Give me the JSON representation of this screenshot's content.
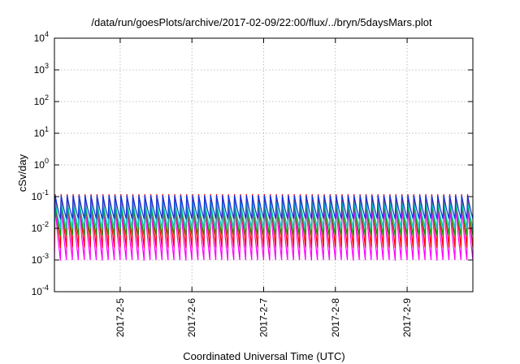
{
  "chart_data": {
    "type": "line",
    "title": "/data/run/goesPlots/archive/2017-02-09/22:00/flux/../bryn/5daysMars.plot",
    "xlabel": "Coordinated Universal Time (UTC)",
    "ylabel": "cSv/day",
    "yscale": "log",
    "ylim": [
      0.0001,
      10000
    ],
    "y_ticks": [
      {
        "exp": "-4",
        "value": 0.0001
      },
      {
        "exp": "-3",
        "value": 0.001
      },
      {
        "exp": "-2",
        "value": 0.01
      },
      {
        "exp": "-1",
        "value": 0.1
      },
      {
        "exp": "0",
        "value": 1
      },
      {
        "exp": "1",
        "value": 10
      },
      {
        "exp": "2",
        "value": 100
      },
      {
        "exp": "3",
        "value": 1000
      },
      {
        "exp": "4",
        "value": 10000
      }
    ],
    "y_tick_base": "10",
    "xlim": [
      "2017-02-04T02:00",
      "2017-02-09T22:00"
    ],
    "x_ticks": [
      "2017-2-5",
      "2017-2-6",
      "2017-2-7",
      "2017-2-8",
      "2017-2-9"
    ],
    "x_tick_dates": [
      "2017-02-05T00:00",
      "2017-02-06T00:00",
      "2017-02-07T00:00",
      "2017-02-08T00:00",
      "2017-02-09T00:00"
    ],
    "grid": true,
    "legend": "none",
    "oscillation_period_hours": 2,
    "series": [
      {
        "color": "#ff00ff",
        "high": 0.05,
        "low": 0.001
      },
      {
        "color": "#ff0000",
        "high": 0.12,
        "low": 0.0025
      },
      {
        "color": "#00a000",
        "high": 0.06,
        "low": 0.006
      },
      {
        "color": "#00c8c8",
        "high": 0.07,
        "low": 0.01
      },
      {
        "color": "#1030e0",
        "high": 0.11,
        "low": 0.02
      }
    ]
  }
}
